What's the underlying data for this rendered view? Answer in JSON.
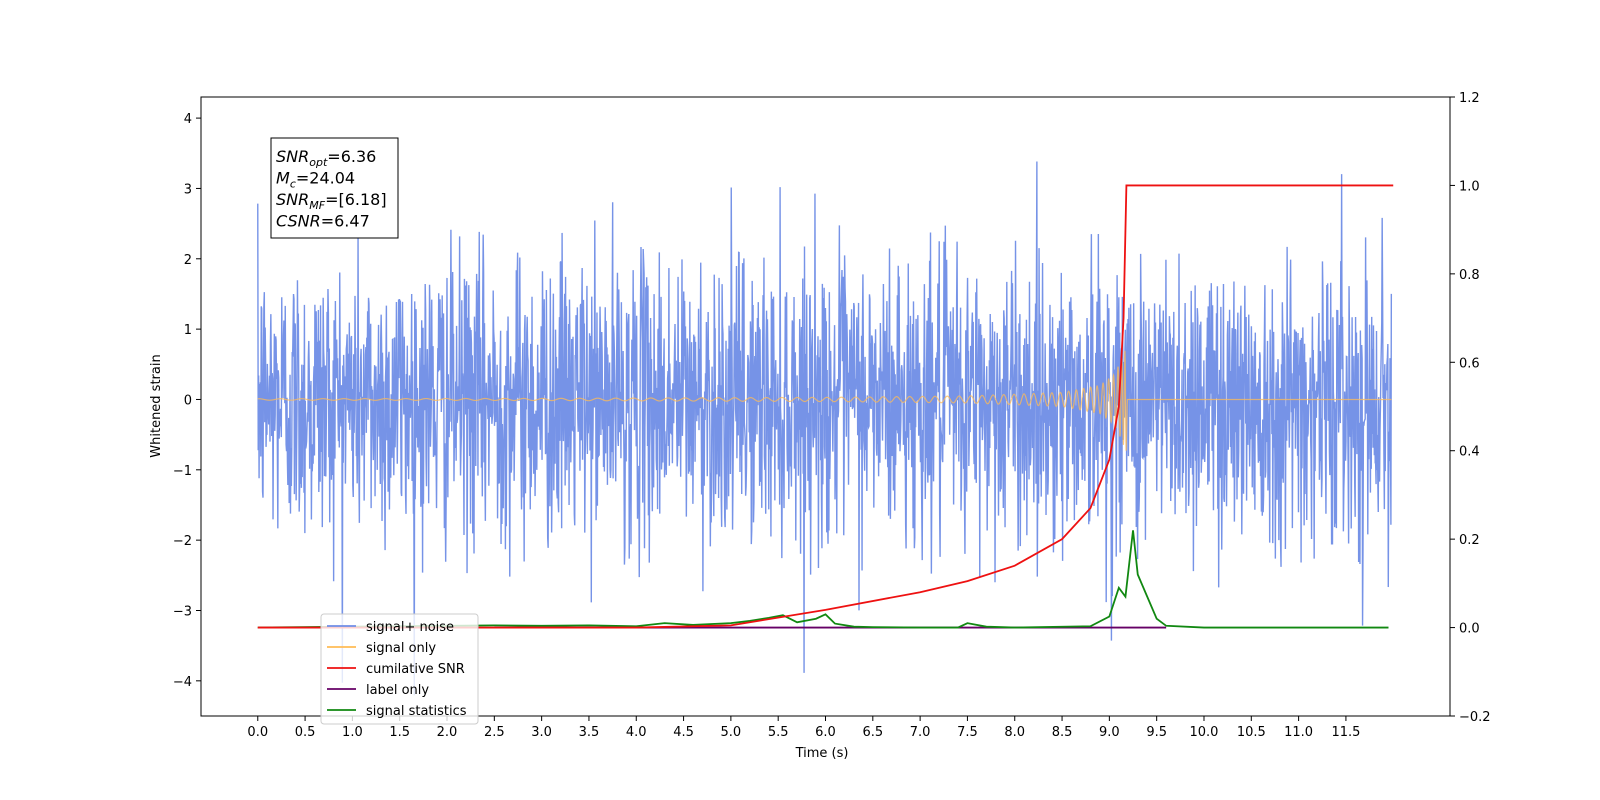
{
  "chart_data": {
    "type": "line",
    "title": "",
    "xlabel": "Time (s)",
    "ylabel": "Whitened strain",
    "xlim": [
      -0.6,
      12.6
    ],
    "ylim": [
      -4.5,
      4.3
    ],
    "y2lim": [
      -0.2,
      1.2
    ],
    "x_ticks": [
      0.0,
      0.5,
      1.0,
      1.5,
      2.0,
      2.5,
      3.0,
      3.5,
      4.0,
      4.5,
      5.0,
      5.5,
      6.0,
      6.5,
      7.0,
      7.5,
      8.0,
      8.5,
      9.0,
      9.5,
      10.0,
      10.5,
      11.0,
      11.5
    ],
    "x_tick_labels": [
      "0.0",
      "0.5",
      "1.0",
      "1.5",
      "2.0",
      "2.5",
      "3.0",
      "3.5",
      "4.0",
      "4.5",
      "5.0",
      "5.5",
      "6.0",
      "6.5",
      "7.0",
      "7.5",
      "8.0",
      "8.5",
      "9.0",
      "9.5",
      "10.0",
      "10.5",
      "11.0",
      "11.5"
    ],
    "y_ticks": [
      -4,
      -3,
      -2,
      -1,
      0,
      1,
      2,
      3,
      4
    ],
    "y_tick_labels": [
      "−4",
      "−3",
      "−2",
      "−1",
      "0",
      "1",
      "2",
      "3",
      "4"
    ],
    "y2_ticks": [
      -0.2,
      0.0,
      0.2,
      0.4,
      0.6,
      0.8,
      1.0,
      1.2
    ],
    "y2_tick_labels": [
      "−0.2",
      "0.0",
      "0.2",
      "0.4",
      "0.6",
      "0.8",
      "1.0",
      "1.2"
    ],
    "grid": false,
    "legend_placement": "lower-left",
    "annotation": [
      {
        "main": "SNR",
        "sub": "opt",
        "rest": "=6.36"
      },
      {
        "main": "M",
        "sub": "c",
        "rest": "=24.04"
      },
      {
        "main": "SNR",
        "sub": "MF",
        "rest": "=[6.18]"
      },
      {
        "main": "CSNR",
        "sub": "",
        "rest": "=6.47"
      }
    ],
    "noise_amplitude_sigma": 1.0,
    "merger_time": 9.18,
    "series": [
      {
        "name": "signal+ noise",
        "color": "#6f8de6",
        "axis": "left",
        "kind": "whitened strain, noise-dominated, t 0 to 12 s"
      },
      {
        "name": "signal only",
        "color": "#ffbb55",
        "axis": "left",
        "envelope_t": [
          0.0,
          3.0,
          6.0,
          7.5,
          8.5,
          8.9,
          9.05,
          9.12,
          9.18,
          9.19,
          12.0
        ],
        "envelope_a": [
          0.01,
          0.015,
          0.03,
          0.05,
          0.1,
          0.2,
          0.35,
          0.55,
          0.75,
          0.0,
          0.0
        ]
      },
      {
        "name": "cumilative SNR",
        "color": "#ee1111",
        "axis": "right",
        "x": [
          0.0,
          2.0,
          4.0,
          5.0,
          6.0,
          7.0,
          7.5,
          8.0,
          8.5,
          8.8,
          9.0,
          9.1,
          9.15,
          9.18,
          9.19,
          12.0
        ],
        "y": [
          0.0,
          0.0,
          0.0,
          0.005,
          0.04,
          0.08,
          0.105,
          0.14,
          0.2,
          0.27,
          0.38,
          0.5,
          0.7,
          1.0,
          1.0,
          1.0
        ]
      },
      {
        "name": "label only",
        "color": "#660066",
        "axis": "right",
        "x": [
          2.5,
          9.6
        ],
        "y": [
          0.0,
          0.0
        ]
      },
      {
        "name": "signal statistics",
        "color": "#118811",
        "axis": "right",
        "x": [
          0.0,
          2.5,
          3.0,
          3.5,
          4.0,
          4.3,
          4.6,
          5.0,
          5.2,
          5.4,
          5.55,
          5.7,
          5.9,
          6.0,
          6.1,
          6.3,
          6.5,
          7.0,
          7.4,
          7.5,
          7.7,
          8.0,
          8.8,
          9.0,
          9.1,
          9.17,
          9.25,
          9.3,
          9.4,
          9.5,
          9.6,
          10.0,
          11.95
        ],
        "y": [
          0.0,
          0.005,
          0.004,
          0.005,
          0.003,
          0.01,
          0.006,
          0.01,
          0.015,
          0.022,
          0.028,
          0.012,
          0.02,
          0.03,
          0.009,
          0.002,
          0.001,
          0.0,
          0.0,
          0.01,
          0.002,
          0.0,
          0.003,
          0.025,
          0.09,
          0.07,
          0.22,
          0.12,
          0.07,
          0.02,
          0.004,
          0.0,
          0.0
        ]
      }
    ]
  }
}
